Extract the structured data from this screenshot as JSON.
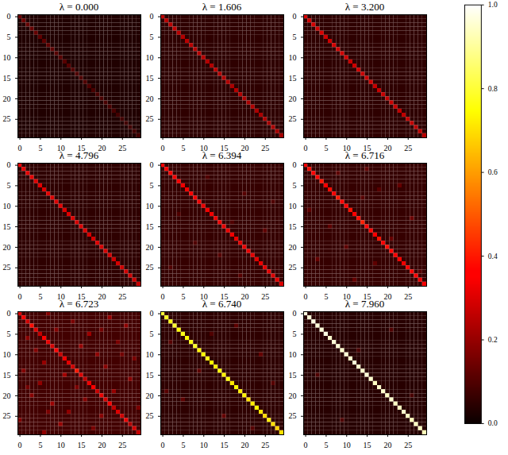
{
  "chart_data": {
    "type": "heatmap",
    "xlim": [
      -0.5,
      29.5
    ],
    "ylim": [
      -0.5,
      29.5
    ],
    "xticks": [
      0,
      5,
      10,
      15,
      20,
      25
    ],
    "yticks": [
      0,
      5,
      10,
      15,
      20,
      25
    ],
    "colorbar": {
      "range": [
        0,
        1
      ],
      "ticks": [
        {
          "value": 0,
          "label": "0.0"
        },
        {
          "value": 0.2,
          "label": "0.2"
        },
        {
          "value": 0.4,
          "label": "0.4"
        },
        {
          "value": 0.6,
          "label": "0.6"
        },
        {
          "value": 0.8,
          "label": "0.8"
        },
        {
          "value": 1,
          "label": "1.0"
        }
      ]
    },
    "panels": [
      {
        "title": "λ = 0.000",
        "background": 0.03,
        "diagonal": [
          0.14,
          0.14,
          0.13,
          0.13,
          0.13,
          0.12,
          0.12,
          0.12,
          0.12,
          0.11,
          0.11,
          0.11,
          0.11,
          0.1,
          0.1,
          0.1,
          0.1,
          0.1,
          0.09,
          0.09,
          0.09,
          0.09,
          0.09,
          0.09,
          0.08,
          0.08,
          0.08,
          0.08,
          0.08,
          0.08
        ],
        "cells": []
      },
      {
        "title": "λ = 1.606",
        "background": 0.05,
        "diagonal": [
          0.26,
          0.25,
          0.25,
          0.26,
          0.25,
          0.24,
          0.25,
          0.25,
          0.24,
          0.25,
          0.25,
          0.24,
          0.24,
          0.25,
          0.24,
          0.24,
          0.24,
          0.23,
          0.24,
          0.24,
          0.23,
          0.23,
          0.24,
          0.23,
          0.23,
          0.23,
          0.22,
          0.23,
          0.22,
          0.22
        ],
        "cells": []
      },
      {
        "title": "λ = 3.200",
        "background": 0.05,
        "diagonal": [
          0.3,
          0.29,
          0.29,
          0.28,
          0.29,
          0.28,
          0.28,
          0.29,
          0.28,
          0.28,
          0.28,
          0.27,
          0.28,
          0.28,
          0.27,
          0.27,
          0.28,
          0.27,
          0.27,
          0.27,
          0.26,
          0.27,
          0.27,
          0.26,
          0.26,
          0.26,
          0.26,
          0.25,
          0.26,
          0.25
        ],
        "cells": []
      },
      {
        "title": "λ = 4.796",
        "background": 0.05,
        "diagonal": [
          0.32,
          0.31,
          0.31,
          0.31,
          0.3,
          0.31,
          0.3,
          0.31,
          0.3,
          0.3,
          0.31,
          0.3,
          0.3,
          0.3,
          0.29,
          0.3,
          0.3,
          0.29,
          0.29,
          0.3,
          0.29,
          0.29,
          0.29,
          0.28,
          0.29,
          0.28,
          0.28,
          0.28,
          0.28,
          0.27
        ],
        "cells": []
      },
      {
        "title": "λ = 6.394",
        "background": 0.06,
        "diagonal": [
          0.35,
          0.34,
          0.34,
          0.33,
          0.34,
          0.33,
          0.33,
          0.34,
          0.33,
          0.33,
          0.32,
          0.33,
          0.33,
          0.32,
          0.33,
          0.32,
          0.32,
          0.33,
          0.32,
          0.31,
          0.32,
          0.32,
          0.31,
          0.31,
          0.32,
          0.31,
          0.31,
          0.3,
          0.31,
          0.3
        ],
        "cells": [
          [
            3,
            11,
            0.1
          ],
          [
            7,
            20,
            0.11
          ],
          [
            12,
            4,
            0.1
          ],
          [
            16,
            25,
            0.12
          ],
          [
            19,
            8,
            0.1
          ],
          [
            22,
            14,
            0.11
          ],
          [
            25,
            2,
            0.1
          ],
          [
            27,
            19,
            0.11
          ],
          [
            9,
            27,
            0.1
          ],
          [
            14,
            17,
            0.1
          ]
        ]
      },
      {
        "title": "λ = 6.716",
        "background": 0.06,
        "diagonal": [
          0.36,
          0.38,
          0.35,
          0.37,
          0.39,
          0.36,
          0.38,
          0.34,
          0.4,
          0.37,
          0.35,
          0.39,
          0.36,
          0.38,
          0.41,
          0.35,
          0.37,
          0.36,
          0.39,
          0.34,
          0.38,
          0.36,
          0.35,
          0.37,
          0.33,
          0.36,
          0.34,
          0.35,
          0.33,
          0.34
        ],
        "cells": [
          [
            2,
            8,
            0.12
          ],
          [
            5,
            23,
            0.13
          ],
          [
            8,
            14,
            0.11
          ],
          [
            11,
            1,
            0.12
          ],
          [
            13,
            26,
            0.14
          ],
          [
            15,
            6,
            0.12
          ],
          [
            18,
            21,
            0.13
          ],
          [
            20,
            10,
            0.12
          ],
          [
            23,
            3,
            0.13
          ],
          [
            24,
            17,
            0.12
          ],
          [
            26,
            28,
            0.11
          ],
          [
            28,
            12,
            0.13
          ],
          [
            6,
            18,
            0.11
          ],
          [
            1,
            15,
            0.12
          ]
        ]
      },
      {
        "title": "λ = 6.723",
        "background": 0.08,
        "diagonal": [
          0.3,
          0.34,
          0.28,
          0.38,
          0.3,
          0.26,
          0.35,
          0.32,
          0.29,
          0.36,
          0.27,
          0.33,
          0.31,
          0.28,
          0.4,
          0.3,
          0.25,
          0.33,
          0.36,
          0.27,
          0.32,
          0.29,
          0.34,
          0.26,
          0.3,
          0.28,
          0.32,
          0.24,
          0.29,
          0.27
        ],
        "cells": [
          [
            0,
            7,
            0.18
          ],
          [
            1,
            22,
            0.2
          ],
          [
            2,
            13,
            0.16
          ],
          [
            3,
            26,
            0.19
          ],
          [
            4,
            9,
            0.17
          ],
          [
            5,
            17,
            0.21
          ],
          [
            6,
            2,
            0.18
          ],
          [
            7,
            24,
            0.16
          ],
          [
            8,
            15,
            0.2
          ],
          [
            9,
            4,
            0.17
          ],
          [
            10,
            19,
            0.19
          ],
          [
            11,
            28,
            0.16
          ],
          [
            12,
            6,
            0.2
          ],
          [
            13,
            21,
            0.18
          ],
          [
            14,
            1,
            0.17
          ],
          [
            15,
            11,
            0.22
          ],
          [
            16,
            27,
            0.18
          ],
          [
            17,
            5,
            0.19
          ],
          [
            18,
            14,
            0.16
          ],
          [
            19,
            23,
            0.2
          ],
          [
            20,
            3,
            0.18
          ],
          [
            21,
            16,
            0.17
          ],
          [
            22,
            8,
            0.21
          ],
          [
            23,
            29,
            0.16
          ],
          [
            24,
            12,
            0.19
          ],
          [
            25,
            20,
            0.18
          ],
          [
            26,
            0,
            0.17
          ],
          [
            27,
            10,
            0.2
          ],
          [
            28,
            18,
            0.16
          ],
          [
            29,
            6,
            0.19
          ],
          [
            4,
            20,
            0.15
          ],
          [
            10,
            25,
            0.15
          ],
          [
            18,
            2,
            0.15
          ],
          [
            24,
            7,
            0.16
          ]
        ]
      },
      {
        "title": "λ = 6.740",
        "background": 0.05,
        "diagonal": [
          0.8,
          0.78,
          0.76,
          0.79,
          0.75,
          0.77,
          0.74,
          0.76,
          0.78,
          0.73,
          0.75,
          0.77,
          0.74,
          0.72,
          0.75,
          0.73,
          0.76,
          0.71,
          0.74,
          0.72,
          0.73,
          0.7,
          0.72,
          0.74,
          0.71,
          0.69,
          0.72,
          0.7,
          0.68,
          0.7
        ],
        "cells": [
          [
            3,
            18,
            0.12
          ],
          [
            7,
            2,
            0.11
          ],
          [
            10,
            24,
            0.13
          ],
          [
            14,
            9,
            0.12
          ],
          [
            17,
            27,
            0.11
          ],
          [
            21,
            5,
            0.12
          ],
          [
            25,
            15,
            0.13
          ],
          [
            28,
            22,
            0.11
          ],
          [
            5,
            12,
            0.1
          ],
          [
            19,
            1,
            0.11
          ]
        ]
      },
      {
        "title": "λ = 7.960",
        "background": 0.04,
        "diagonal": [
          0.97,
          0.96,
          0.97,
          0.96,
          0.96,
          0.97,
          0.95,
          0.96,
          0.96,
          0.95,
          0.96,
          0.95,
          0.96,
          0.95,
          0.95,
          0.96,
          0.95,
          0.94,
          0.95,
          0.95,
          0.94,
          0.95,
          0.94,
          0.94,
          0.95,
          0.94,
          0.93,
          0.94,
          0.94,
          0.93
        ],
        "cells": [
          [
            4,
            21,
            0.1
          ],
          [
            9,
            13,
            0.09
          ],
          [
            15,
            3,
            0.1
          ],
          [
            20,
            26,
            0.09
          ],
          [
            26,
            9,
            0.1
          ]
        ]
      }
    ]
  }
}
